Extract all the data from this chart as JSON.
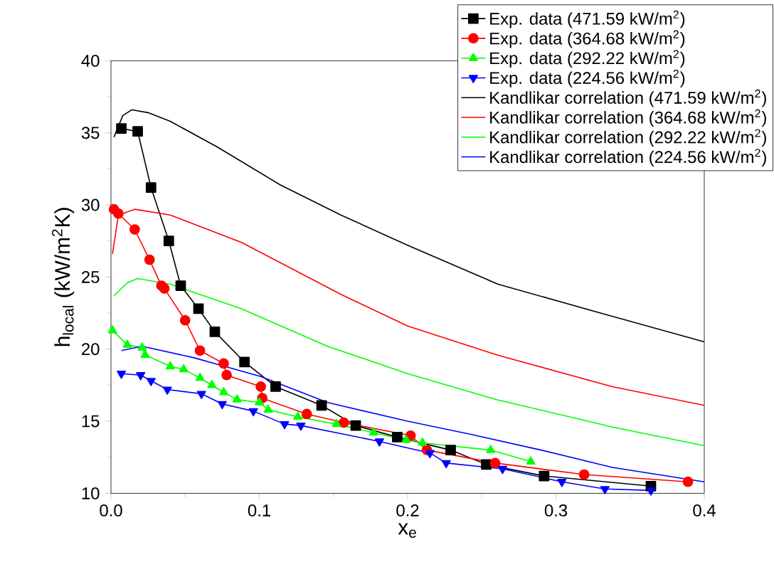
{
  "chart_data": {
    "type": "line",
    "xlabel": "x$_{e}$",
    "ylabel": "h$_{local}$ (kW/m$^{2}$K)",
    "xlim": [
      0,
      0.4
    ],
    "ylim": [
      10,
      40
    ],
    "xticks": [
      {
        "value": 0,
        "label": "0.0"
      },
      0.1,
      0.2,
      0.3,
      0.4
    ],
    "yticks": [
      10,
      15,
      20,
      25,
      30,
      35,
      40
    ],
    "legend": "top right",
    "grid": false,
    "series": [
      {
        "name": "Exp. data (471.59 kW/m$^{2}$)",
        "color": "#000000",
        "marker": "square",
        "x": [
          0.007,
          0.018,
          0.027,
          0.039,
          0.047,
          0.059,
          0.07,
          0.09,
          0.111,
          0.142,
          0.165,
          0.193,
          0.229,
          0.253,
          0.292,
          0.364
        ],
        "values": [
          35.3,
          35.1,
          31.2,
          27.5,
          24.4,
          22.8,
          21.2,
          19.1,
          17.4,
          16.1,
          14.7,
          13.9,
          13.0,
          12.0,
          11.2,
          10.5
        ]
      },
      {
        "name": "Exp. data (364.68 kW/m$^{2}$)",
        "color": "#ff0000",
        "marker": "circle",
        "x": [
          0.002,
          0.005,
          0.016,
          0.026,
          0.034,
          0.036,
          0.05,
          0.06,
          0.076,
          0.078,
          0.101,
          0.102,
          0.132,
          0.157,
          0.202,
          0.213,
          0.259,
          0.319,
          0.389
        ],
        "values": [
          29.7,
          29.4,
          28.3,
          26.2,
          24.4,
          24.2,
          22.0,
          19.9,
          19.0,
          18.2,
          17.4,
          16.6,
          15.5,
          14.9,
          14.0,
          13.0,
          12.1,
          11.3,
          10.8
        ]
      },
      {
        "name": "Exp. data (292.22 kW/m$^{2}$)",
        "color": "#00ff00",
        "marker": "triangle",
        "x": [
          0.001,
          0.011,
          0.021,
          0.023,
          0.04,
          0.049,
          0.06,
          0.068,
          0.076,
          0.085,
          0.1,
          0.106,
          0.126,
          0.152,
          0.177,
          0.199,
          0.21,
          0.256,
          0.283
        ],
        "values": [
          21.3,
          20.3,
          20.1,
          19.6,
          18.8,
          18.6,
          18.0,
          17.5,
          17.0,
          16.5,
          16.3,
          15.8,
          15.3,
          14.8,
          14.2,
          13.7,
          13.5,
          13.0,
          12.2
        ]
      },
      {
        "name": "Exp. data (224.56 kW/m$^{2}$)",
        "color": "#0000ff",
        "marker": "triangle down",
        "x": [
          0.007,
          0.02,
          0.027,
          0.038,
          0.061,
          0.075,
          0.096,
          0.117,
          0.128,
          0.181,
          0.215,
          0.226,
          0.264,
          0.304,
          0.333,
          0.364
        ],
        "values": [
          18.3,
          18.2,
          17.8,
          17.2,
          16.9,
          16.2,
          15.7,
          14.8,
          14.7,
          13.6,
          12.8,
          12.1,
          11.7,
          10.8,
          10.3,
          10.2
        ]
      },
      {
        "name": "Kandlikar correlation (471.59 kW/m$^{2}$)",
        "color": "#000000",
        "marker": "none",
        "x": [
          0.002,
          0.008,
          0.014,
          0.025,
          0.04,
          0.072,
          0.114,
          0.155,
          0.2,
          0.261,
          0.33,
          0.4
        ],
        "values": [
          34.7,
          36.2,
          36.6,
          36.4,
          35.8,
          34.0,
          31.4,
          29.3,
          27.2,
          24.5,
          22.5,
          20.5
        ]
      },
      {
        "name": "Kandlikar correlation (364.68 kW/m$^{2}$)",
        "color": "#ff0000",
        "marker": "none",
        "x": [
          0.001,
          0.005,
          0.016,
          0.04,
          0.088,
          0.155,
          0.2,
          0.26,
          0.338,
          0.4
        ],
        "values": [
          26.6,
          29.3,
          29.7,
          29.3,
          27.4,
          23.8,
          21.6,
          19.6,
          17.4,
          16.1
        ]
      },
      {
        "name": "Kandlikar correlation (292.22 kW/m$^{2}$)",
        "color": "#00ff00",
        "marker": "none",
        "x": [
          0.002,
          0.011,
          0.018,
          0.04,
          0.088,
          0.146,
          0.2,
          0.26,
          0.338,
          0.4
        ],
        "values": [
          23.7,
          24.6,
          24.9,
          24.5,
          22.8,
          20.2,
          18.3,
          16.5,
          14.6,
          13.3
        ]
      },
      {
        "name": "Kandlikar correlation (224.56 kW/m$^{2}$)",
        "color": "#0000ff",
        "marker": "none",
        "x": [
          0.007,
          0.021,
          0.056,
          0.101,
          0.146,
          0.2,
          0.242,
          0.29,
          0.338,
          0.4
        ],
        "values": [
          19.9,
          20.2,
          19.4,
          18.1,
          16.3,
          15.0,
          14.1,
          13.0,
          11.8,
          10.8
        ]
      }
    ]
  }
}
